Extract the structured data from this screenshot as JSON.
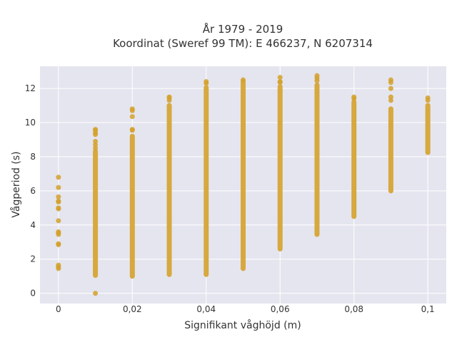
{
  "chart_data": {
    "type": "scatter",
    "title_line1": "År 1979 - 2019",
    "title_line2": "Koordinat (Sweref 99 TM): E 466237, N 6207314",
    "xlabel": "Signifikant våghöjd (m)",
    "ylabel": "Vågperiod (s)",
    "xlim": [
      -0.005,
      0.105
    ],
    "ylim": [
      -0.6,
      13.3
    ],
    "x_ticks": [
      0,
      0.02,
      0.04,
      0.06,
      0.08,
      0.1
    ],
    "x_tick_labels": [
      "0",
      "0,02",
      "0,04",
      "0,06",
      "0,08",
      "0,1"
    ],
    "y_ticks": [
      0,
      2,
      4,
      6,
      8,
      10,
      12
    ],
    "y_tick_labels": [
      "0",
      "2",
      "4",
      "6",
      "8",
      "10",
      "12"
    ],
    "grid": true,
    "marker_color": "#d4a12a",
    "plot_bg": "#e5e5ef",
    "columns": [
      {
        "x": 0,
        "points": [
          1.45,
          1.55,
          1.65,
          2.85,
          2.9,
          3.45,
          3.55,
          3.6,
          4.25,
          4.95,
          5.0,
          5.35,
          5.4,
          5.65,
          6.2,
          6.8
        ]
      },
      {
        "x": 0.01,
        "ranges": [
          [
            1.05,
            8.3
          ]
        ],
        "points": [
          0.0,
          8.5,
          8.7,
          8.9,
          9.3,
          9.4,
          9.55,
          9.6
        ]
      },
      {
        "x": 0.02,
        "ranges": [
          [
            1.0,
            9.2
          ]
        ],
        "points": [
          9.55,
          9.6,
          10.35,
          10.7,
          10.8
        ]
      },
      {
        "x": 0.03,
        "ranges": [
          [
            1.1,
            11.0
          ]
        ],
        "points": [
          11.3,
          11.45,
          11.5
        ]
      },
      {
        "x": 0.04,
        "ranges": [
          [
            1.1,
            12.05
          ]
        ],
        "points": [
          12.3,
          12.4
        ]
      },
      {
        "x": 0.05,
        "ranges": [
          [
            1.45,
            12.4
          ]
        ],
        "points": [
          12.5
        ]
      },
      {
        "x": 0.06,
        "ranges": [
          [
            2.6,
            12.1
          ]
        ],
        "points": [
          12.35,
          12.4,
          12.65
        ]
      },
      {
        "x": 0.07,
        "ranges": [
          [
            3.45,
            12.2
          ]
        ],
        "points": [
          12.45,
          12.6,
          12.75
        ]
      },
      {
        "x": 0.08,
        "ranges": [
          [
            4.5,
            11.2
          ]
        ],
        "points": [
          11.4,
          11.5
        ]
      },
      {
        "x": 0.09,
        "ranges": [
          [
            6.0,
            10.8
          ]
        ],
        "points": [
          11.3,
          11.5,
          12.0,
          12.35,
          12.5
        ]
      },
      {
        "x": 0.1,
        "ranges": [
          [
            8.25,
            11.0
          ]
        ],
        "points": [
          11.3,
          11.45
        ]
      }
    ]
  }
}
